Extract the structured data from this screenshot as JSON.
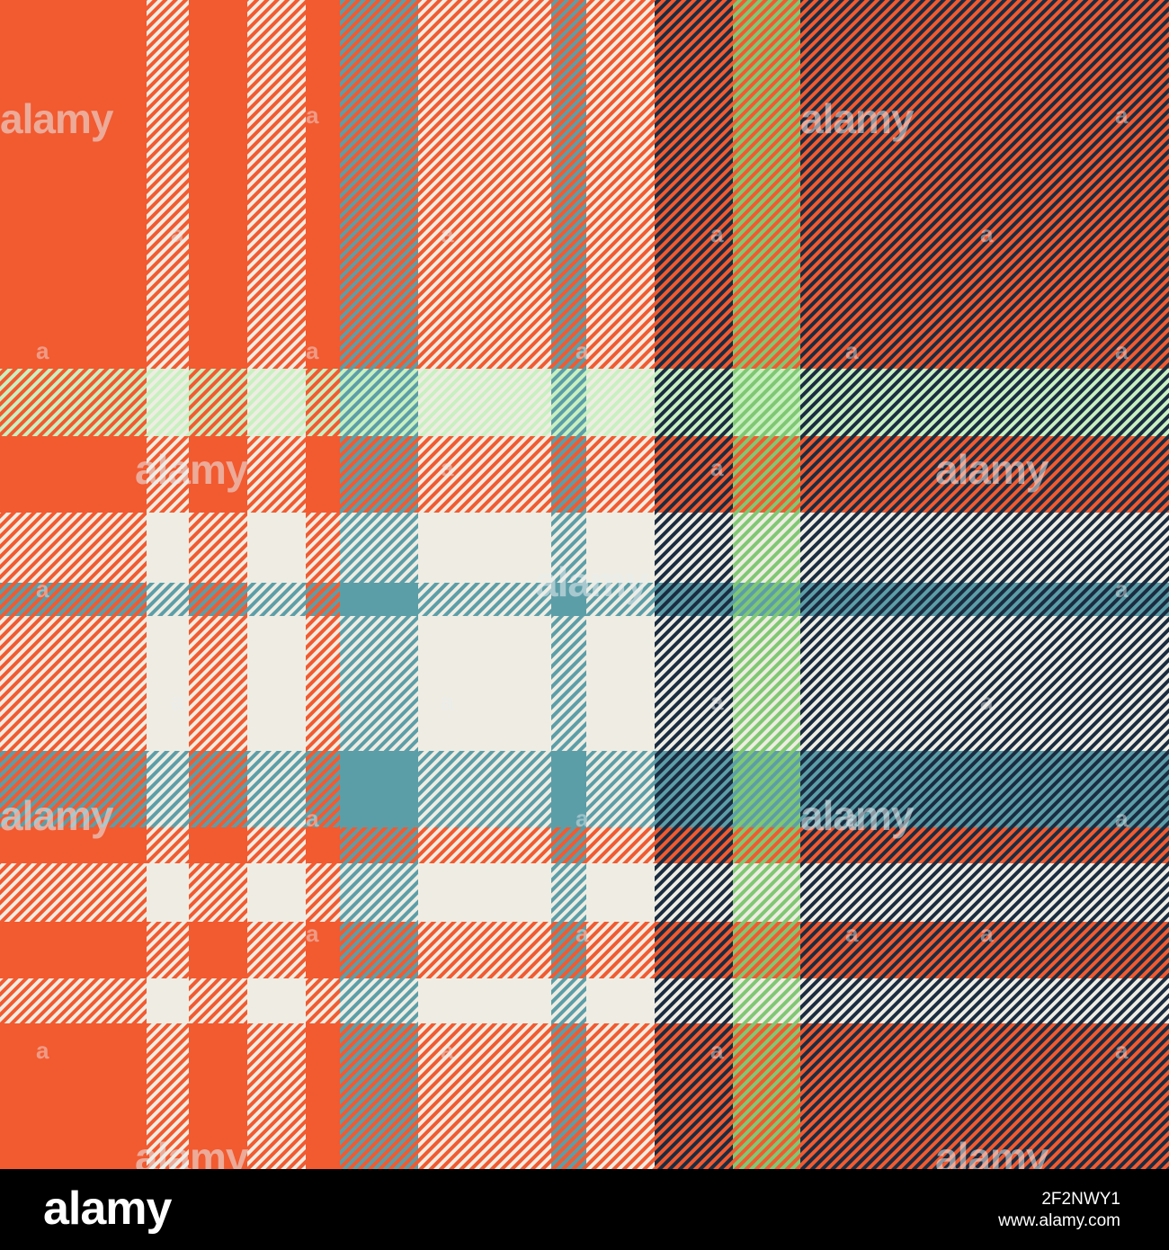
{
  "image": {
    "palette": {
      "navy": "#1a2c41",
      "teal": "#5c9ea8",
      "orange": "#f25a30",
      "cream": "#efede3",
      "green": "#7fc873",
      "light_green": "#c8f0c0"
    }
  },
  "watermark": {
    "logo_text": "alamy",
    "mark_glyph": "a"
  },
  "footer": {
    "logo": "alamy",
    "image_id": "2F2NWY1",
    "site": "www.alamy.com"
  }
}
